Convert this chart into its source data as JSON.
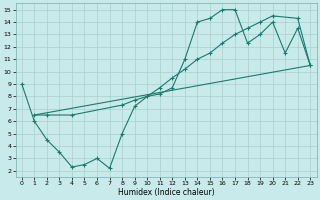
{
  "xlabel": "Humidex (Indice chaleur)",
  "bg_color": "#c8eaea",
  "line_color": "#1a7a6e",
  "grid_color": "#a8d0d0",
  "xlim": [
    -0.5,
    23.5
  ],
  "ylim": [
    1.5,
    15.5
  ],
  "xticks": [
    0,
    1,
    2,
    3,
    4,
    5,
    6,
    7,
    8,
    9,
    10,
    11,
    12,
    13,
    14,
    15,
    16,
    17,
    18,
    19,
    20,
    21,
    22,
    23
  ],
  "yticks": [
    2,
    3,
    4,
    5,
    6,
    7,
    8,
    9,
    10,
    11,
    12,
    13,
    14,
    15
  ],
  "line1_x": [
    0,
    1,
    2,
    3,
    4,
    5,
    6,
    7,
    8,
    9,
    10,
    11,
    12,
    13,
    14,
    15,
    16,
    17,
    18,
    19,
    20,
    21,
    22,
    23
  ],
  "line1_y": [
    9,
    6,
    4.5,
    3.5,
    2.3,
    2.5,
    3.0,
    2.2,
    5.0,
    7.2,
    8.0,
    8.2,
    8.7,
    11.0,
    14.0,
    14.3,
    15.0,
    15.0,
    12.3,
    13.0,
    14.0,
    11.5,
    13.5,
    10.5
  ],
  "line2_x": [
    1,
    2,
    4,
    8,
    9,
    10,
    11,
    12,
    13,
    14,
    15,
    16,
    17,
    18,
    19,
    20,
    22,
    23
  ],
  "line2_y": [
    6.5,
    6.5,
    6.5,
    7.3,
    7.7,
    8.0,
    8.7,
    9.5,
    10.2,
    11.0,
    11.5,
    12.3,
    13.0,
    13.5,
    14.0,
    14.5,
    14.3,
    10.5
  ],
  "line3_x": [
    1,
    23
  ],
  "line3_y": [
    6.5,
    10.5
  ]
}
